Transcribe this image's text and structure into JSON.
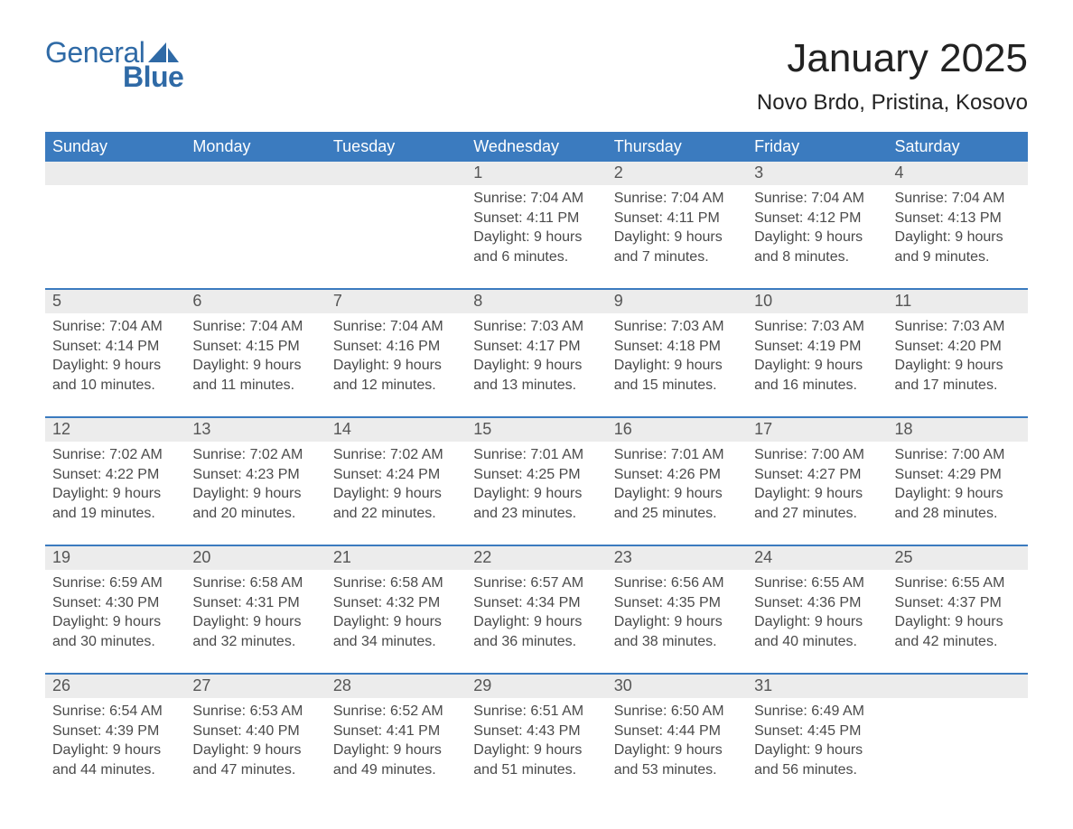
{
  "logo": {
    "word1": "General",
    "word2": "Blue"
  },
  "title": "January 2025",
  "location": "Novo Brdo, Pristina, Kosovo",
  "colors": {
    "header_blue": "#3b7bbf",
    "date_band": "#ececec",
    "text": "#333333",
    "page_bg": "#ffffff"
  },
  "weekdays": [
    "Sunday",
    "Monday",
    "Tuesday",
    "Wednesday",
    "Thursday",
    "Friday",
    "Saturday"
  ],
  "weeks": [
    [
      null,
      null,
      null,
      {
        "date": "1",
        "sunrise": "7:04 AM",
        "sunset": "4:11 PM",
        "daylight": "9 hours and 6 minutes."
      },
      {
        "date": "2",
        "sunrise": "7:04 AM",
        "sunset": "4:11 PM",
        "daylight": "9 hours and 7 minutes."
      },
      {
        "date": "3",
        "sunrise": "7:04 AM",
        "sunset": "4:12 PM",
        "daylight": "9 hours and 8 minutes."
      },
      {
        "date": "4",
        "sunrise": "7:04 AM",
        "sunset": "4:13 PM",
        "daylight": "9 hours and 9 minutes."
      }
    ],
    [
      {
        "date": "5",
        "sunrise": "7:04 AM",
        "sunset": "4:14 PM",
        "daylight": "9 hours and 10 minutes."
      },
      {
        "date": "6",
        "sunrise": "7:04 AM",
        "sunset": "4:15 PM",
        "daylight": "9 hours and 11 minutes."
      },
      {
        "date": "7",
        "sunrise": "7:04 AM",
        "sunset": "4:16 PM",
        "daylight": "9 hours and 12 minutes."
      },
      {
        "date": "8",
        "sunrise": "7:03 AM",
        "sunset": "4:17 PM",
        "daylight": "9 hours and 13 minutes."
      },
      {
        "date": "9",
        "sunrise": "7:03 AM",
        "sunset": "4:18 PM",
        "daylight": "9 hours and 15 minutes."
      },
      {
        "date": "10",
        "sunrise": "7:03 AM",
        "sunset": "4:19 PM",
        "daylight": "9 hours and 16 minutes."
      },
      {
        "date": "11",
        "sunrise": "7:03 AM",
        "sunset": "4:20 PM",
        "daylight": "9 hours and 17 minutes."
      }
    ],
    [
      {
        "date": "12",
        "sunrise": "7:02 AM",
        "sunset": "4:22 PM",
        "daylight": "9 hours and 19 minutes."
      },
      {
        "date": "13",
        "sunrise": "7:02 AM",
        "sunset": "4:23 PM",
        "daylight": "9 hours and 20 minutes."
      },
      {
        "date": "14",
        "sunrise": "7:02 AM",
        "sunset": "4:24 PM",
        "daylight": "9 hours and 22 minutes."
      },
      {
        "date": "15",
        "sunrise": "7:01 AM",
        "sunset": "4:25 PM",
        "daylight": "9 hours and 23 minutes."
      },
      {
        "date": "16",
        "sunrise": "7:01 AM",
        "sunset": "4:26 PM",
        "daylight": "9 hours and 25 minutes."
      },
      {
        "date": "17",
        "sunrise": "7:00 AM",
        "sunset": "4:27 PM",
        "daylight": "9 hours and 27 minutes."
      },
      {
        "date": "18",
        "sunrise": "7:00 AM",
        "sunset": "4:29 PM",
        "daylight": "9 hours and 28 minutes."
      }
    ],
    [
      {
        "date": "19",
        "sunrise": "6:59 AM",
        "sunset": "4:30 PM",
        "daylight": "9 hours and 30 minutes."
      },
      {
        "date": "20",
        "sunrise": "6:58 AM",
        "sunset": "4:31 PM",
        "daylight": "9 hours and 32 minutes."
      },
      {
        "date": "21",
        "sunrise": "6:58 AM",
        "sunset": "4:32 PM",
        "daylight": "9 hours and 34 minutes."
      },
      {
        "date": "22",
        "sunrise": "6:57 AM",
        "sunset": "4:34 PM",
        "daylight": "9 hours and 36 minutes."
      },
      {
        "date": "23",
        "sunrise": "6:56 AM",
        "sunset": "4:35 PM",
        "daylight": "9 hours and 38 minutes."
      },
      {
        "date": "24",
        "sunrise": "6:55 AM",
        "sunset": "4:36 PM",
        "daylight": "9 hours and 40 minutes."
      },
      {
        "date": "25",
        "sunrise": "6:55 AM",
        "sunset": "4:37 PM",
        "daylight": "9 hours and 42 minutes."
      }
    ],
    [
      {
        "date": "26",
        "sunrise": "6:54 AM",
        "sunset": "4:39 PM",
        "daylight": "9 hours and 44 minutes."
      },
      {
        "date": "27",
        "sunrise": "6:53 AM",
        "sunset": "4:40 PM",
        "daylight": "9 hours and 47 minutes."
      },
      {
        "date": "28",
        "sunrise": "6:52 AM",
        "sunset": "4:41 PM",
        "daylight": "9 hours and 49 minutes."
      },
      {
        "date": "29",
        "sunrise": "6:51 AM",
        "sunset": "4:43 PM",
        "daylight": "9 hours and 51 minutes."
      },
      {
        "date": "30",
        "sunrise": "6:50 AM",
        "sunset": "4:44 PM",
        "daylight": "9 hours and 53 minutes."
      },
      {
        "date": "31",
        "sunrise": "6:49 AM",
        "sunset": "4:45 PM",
        "daylight": "9 hours and 56 minutes."
      },
      null
    ]
  ],
  "labels": {
    "sunrise": "Sunrise:",
    "sunset": "Sunset:",
    "daylight": "Daylight:"
  }
}
